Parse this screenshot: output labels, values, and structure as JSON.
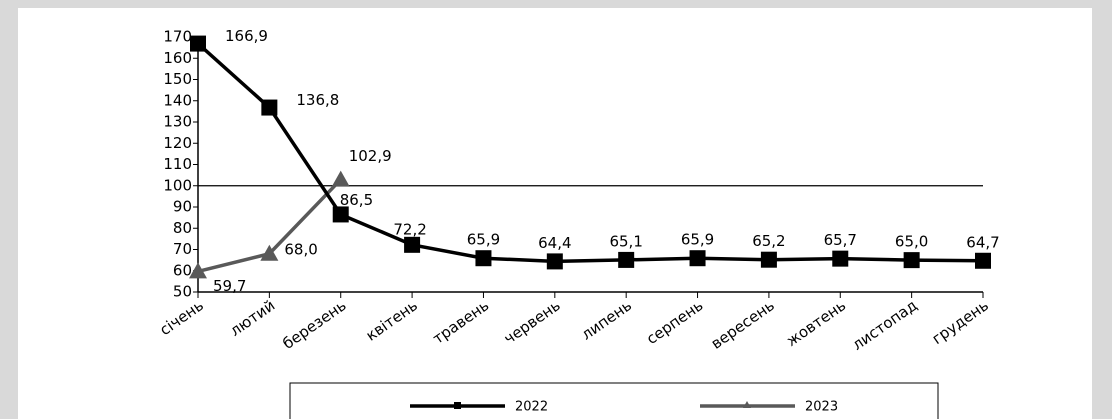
{
  "chart_data": {
    "type": "line",
    "categories": [
      "січень",
      "лютий",
      "березень",
      "квітень",
      "травень",
      "червень",
      "липень",
      "серпень",
      "вересень",
      "жовтень",
      "листопад",
      "грудень"
    ],
    "series": [
      {
        "name": "2022",
        "color": "#000000",
        "marker": "square",
        "values": [
          166.9,
          136.8,
          86.5,
          72.2,
          65.9,
          64.4,
          65.1,
          65.9,
          65.2,
          65.7,
          65.0,
          64.7
        ],
        "value_labels": [
          "166,9",
          "136,8",
          "86,5",
          "72,2",
          "65,9",
          "64,4",
          "65,1",
          "65,9",
          "65,2",
          "65,7",
          "65,0",
          "64,7"
        ]
      },
      {
        "name": "2023",
        "color": "#595959",
        "marker": "triangle",
        "values": [
          59.7,
          68.0,
          102.9,
          null,
          null,
          null,
          null,
          null,
          null,
          null,
          null,
          null
        ],
        "value_labels": [
          "59,7",
          "68,0",
          "102,9",
          null,
          null,
          null,
          null,
          null,
          null,
          null,
          null,
          null
        ]
      }
    ],
    "ylim": [
      50,
      170
    ],
    "yticks": [
      50,
      60,
      70,
      80,
      90,
      100,
      110,
      120,
      130,
      140,
      150,
      160,
      170
    ],
    "reference_line": 100,
    "legend": "bottom"
  }
}
